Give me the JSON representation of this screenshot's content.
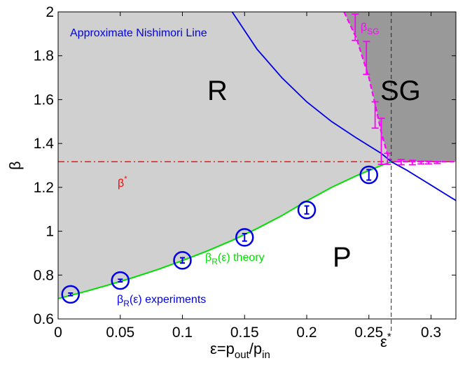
{
  "chart_data": {
    "type": "line",
    "title": "",
    "xlabel": {
      "base": "ε=p",
      "sub1": "out",
      "mid": "/p",
      "sub2": "in"
    },
    "ylabel": "β",
    "xlim": [
      0,
      0.32
    ],
    "ylim": [
      0.6,
      2.0
    ],
    "xticks": [
      0,
      0.05,
      0.1,
      0.15,
      0.2,
      0.25,
      0.3
    ],
    "xtick_labels": [
      "0",
      "0.05",
      "0.1",
      "0.15",
      "0.2",
      "0.25",
      "0.3"
    ],
    "yticks": [
      0.6,
      0.8,
      1.0,
      1.2,
      1.4,
      1.6,
      1.8,
      2.0
    ],
    "ytick_labels": [
      "0.6",
      "0.8",
      "1",
      "1.2",
      "1.4",
      "1.6",
      "1.8",
      "2"
    ],
    "epsilon_star": 0.268,
    "beta_star": 1.317,
    "regions": [
      {
        "name": "R",
        "fill": "#d0d0d0"
      },
      {
        "name": "SG",
        "fill": "#999999"
      },
      {
        "name": "P",
        "fill": "#ffffff"
      }
    ],
    "series": [
      {
        "name": "βR(ε) theory",
        "color": "#00e000",
        "x": [
          0.0,
          0.02,
          0.04,
          0.06,
          0.08,
          0.1,
          0.12,
          0.14,
          0.16,
          0.18,
          0.2,
          0.22,
          0.24,
          0.26,
          0.268
        ],
        "y": [
          0.693,
          0.722,
          0.754,
          0.788,
          0.825,
          0.866,
          0.91,
          0.958,
          1.012,
          1.071,
          1.138,
          1.2,
          1.253,
          1.3,
          1.317
        ]
      },
      {
        "name": "Approximate Nishimori Line",
        "color": "#0000e6",
        "x": [
          0.14,
          0.16,
          0.18,
          0.2,
          0.22,
          0.24,
          0.26,
          0.268,
          0.28,
          0.3,
          0.32
        ],
        "y": [
          2.0,
          1.83,
          1.7,
          1.59,
          1.5,
          1.425,
          1.355,
          1.317,
          1.28,
          1.21,
          1.14
        ]
      },
      {
        "name": "βSG",
        "color": "#ff00ff",
        "x": [
          0.23,
          0.24,
          0.25,
          0.255,
          0.26,
          0.265,
          0.268,
          0.275,
          0.285,
          0.3,
          0.32
        ],
        "y": [
          2.0,
          1.88,
          1.7,
          1.58,
          1.45,
          1.35,
          1.317,
          1.317,
          1.317,
          1.317,
          1.317
        ]
      }
    ],
    "experiments": {
      "name": "βR(ε) experiments",
      "color": "#0000e6",
      "x": [
        0.01,
        0.05,
        0.1,
        0.15,
        0.2,
        0.25
      ],
      "y": [
        0.712,
        0.775,
        0.867,
        0.972,
        1.097,
        1.257
      ],
      "err": [
        0.006,
        0.006,
        0.012,
        0.017,
        0.018,
        0.024
      ]
    },
    "sg_errorbars": {
      "color": "#ff00ff",
      "x": [
        0.239,
        0.248,
        0.255,
        0.26,
        0.265,
        0.276,
        0.285,
        0.292,
        0.298,
        0.305
      ],
      "y": [
        1.93,
        1.79,
        1.53,
        1.41,
        1.33,
        1.315,
        1.313,
        1.313,
        1.313,
        1.313
      ],
      "err": [
        0.06,
        0.075,
        0.06,
        0.105,
        0.025,
        0.012,
        0.01,
        0.006,
        0.006,
        0.004
      ]
    },
    "annotations": {
      "region_r": "R",
      "region_sg": "SG",
      "region_p": "P",
      "nishimori_label": "Approximate Nishimori Line",
      "beta_star": {
        "base": "β",
        "sup": "*"
      },
      "epsilon_star": {
        "base": "ε",
        "sup": "*"
      },
      "beta_sg": {
        "base": "β",
        "sub": "SG"
      },
      "theory": {
        "base": "β",
        "sub": "R",
        "rest": "(ε) theory"
      },
      "experiments": {
        "base": "β",
        "sub": "R",
        "rest": "(ε) experiments"
      }
    }
  }
}
